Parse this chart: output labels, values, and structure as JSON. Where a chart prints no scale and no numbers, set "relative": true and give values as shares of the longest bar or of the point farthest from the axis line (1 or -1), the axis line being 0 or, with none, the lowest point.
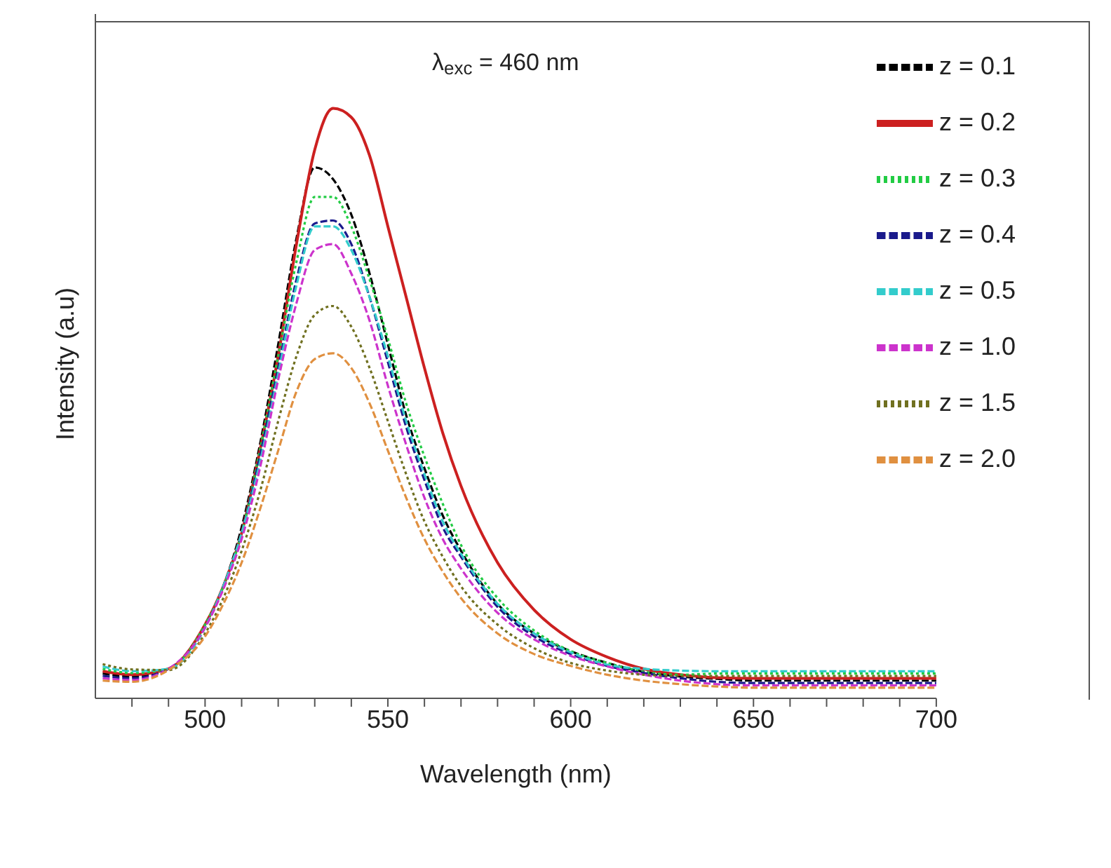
{
  "chart_data": {
    "type": "line",
    "relative": true,
    "xlabel": "Wavelength (nm)",
    "ylabel": "Intensity (a.u)",
    "annotations": [
      "λ$_{exc}$ = 460 nm"
    ],
    "x": [
      472,
      480,
      490,
      500,
      505,
      510,
      515,
      520,
      525,
      530,
      535,
      540,
      545,
      550,
      555,
      560,
      565,
      570,
      580,
      590,
      600,
      610,
      620,
      630,
      640,
      650,
      670,
      700
    ],
    "xlim": [
      470,
      700
    ],
    "xticks": [
      {
        "value": 480,
        "label": null
      },
      {
        "value": 490,
        "label": null
      },
      500,
      {
        "value": 510,
        "label": null
      },
      {
        "value": 520,
        "label": null
      },
      {
        "value": 530,
        "label": null
      },
      {
        "value": 540,
        "label": null
      },
      550,
      {
        "value": 560,
        "label": null
      },
      {
        "value": 570,
        "label": null
      },
      {
        "value": 580,
        "label": null
      },
      {
        "value": 590,
        "label": null
      },
      600,
      {
        "value": 610,
        "label": null
      },
      {
        "value": 620,
        "label": null
      },
      {
        "value": 630,
        "label": null
      },
      {
        "value": 640,
        "label": null
      },
      650,
      {
        "value": 660,
        "label": null
      },
      {
        "value": 670,
        "label": null
      },
      {
        "value": 680,
        "label": null
      },
      {
        "value": 690,
        "label": null
      },
      700
    ],
    "legend": "top right",
    "grid": false,
    "marker": "none",
    "series": [
      {
        "name": "z = 0.1",
        "color": "#000000",
        "line_style": "dashed",
        "values": [
          0.042,
          0.037,
          0.05,
          0.125,
          0.19,
          0.29,
          0.43,
          0.6,
          0.78,
          0.9,
          0.88,
          0.82,
          0.72,
          0.6,
          0.48,
          0.39,
          0.31,
          0.25,
          0.16,
          0.11,
          0.08,
          0.06,
          0.045,
          0.037,
          0.033,
          0.03,
          0.03,
          0.03
        ]
      },
      {
        "name": "z = 0.2",
        "color": "#cc2020",
        "line_style": "solid",
        "values": [
          0.046,
          0.04,
          0.05,
          0.125,
          0.19,
          0.28,
          0.42,
          0.58,
          0.77,
          0.93,
          1,
          0.985,
          0.92,
          0.8,
          0.68,
          0.56,
          0.45,
          0.36,
          0.23,
          0.15,
          0.1,
          0.07,
          0.05,
          0.04,
          0.035,
          0.034,
          0.034,
          0.034
        ]
      },
      {
        "name": "z = 0.3",
        "color": "#22cc44",
        "line_style": "dotted",
        "values": [
          0.05,
          0.043,
          0.05,
          0.125,
          0.19,
          0.28,
          0.42,
          0.58,
          0.74,
          0.85,
          0.85,
          0.8,
          0.71,
          0.61,
          0.5,
          0.41,
          0.33,
          0.26,
          0.17,
          0.115,
          0.08,
          0.06,
          0.045,
          0.04,
          0.042,
          0.042,
          0.042,
          0.042
        ]
      },
      {
        "name": "z = 0.4",
        "color": "#1a1a8c",
        "line_style": "dashed",
        "values": [
          0.038,
          0.034,
          0.05,
          0.12,
          0.19,
          0.28,
          0.41,
          0.56,
          0.71,
          0.805,
          0.81,
          0.77,
          0.68,
          0.57,
          0.46,
          0.37,
          0.29,
          0.24,
          0.155,
          0.105,
          0.075,
          0.055,
          0.043,
          0.034,
          0.028,
          0.026,
          0.026,
          0.026
        ]
      },
      {
        "name": "z = 0.5",
        "color": "#33cccc",
        "line_style": "dashed",
        "values": [
          0.054,
          0.046,
          0.05,
          0.12,
          0.19,
          0.28,
          0.4,
          0.55,
          0.7,
          0.8,
          0.8,
          0.76,
          0.68,
          0.58,
          0.47,
          0.38,
          0.3,
          0.245,
          0.16,
          0.11,
          0.078,
          0.057,
          0.05,
          0.047,
          0.046,
          0.046,
          0.046,
          0.046
        ]
      },
      {
        "name": "z = 1.0",
        "color": "#cc33cc",
        "line_style": "dashed",
        "values": [
          0.034,
          0.031,
          0.05,
          0.12,
          0.185,
          0.27,
          0.39,
          0.54,
          0.67,
          0.76,
          0.77,
          0.72,
          0.64,
          0.53,
          0.43,
          0.34,
          0.27,
          0.22,
          0.145,
          0.1,
          0.072,
          0.054,
          0.04,
          0.03,
          0.024,
          0.022,
          0.022,
          0.022
        ]
      },
      {
        "name": "z = 1.5",
        "color": "#707020",
        "line_style": "dotted",
        "values": [
          0.058,
          0.049,
          0.048,
          0.11,
          0.17,
          0.25,
          0.35,
          0.47,
          0.58,
          0.65,
          0.665,
          0.63,
          0.56,
          0.47,
          0.38,
          0.3,
          0.24,
          0.19,
          0.125,
          0.085,
          0.06,
          0.047,
          0.04,
          0.038,
          0.038,
          0.038,
          0.038,
          0.038
        ]
      },
      {
        "name": "z = 2.0",
        "color": "#e09040",
        "line_style": "dashed",
        "values": [
          0.03,
          0.028,
          0.048,
          0.105,
          0.16,
          0.23,
          0.32,
          0.42,
          0.52,
          0.575,
          0.585,
          0.56,
          0.5,
          0.42,
          0.34,
          0.27,
          0.215,
          0.17,
          0.11,
          0.075,
          0.055,
          0.04,
          0.03,
          0.024,
          0.02,
          0.018,
          0.018,
          0.018
        ]
      }
    ]
  }
}
